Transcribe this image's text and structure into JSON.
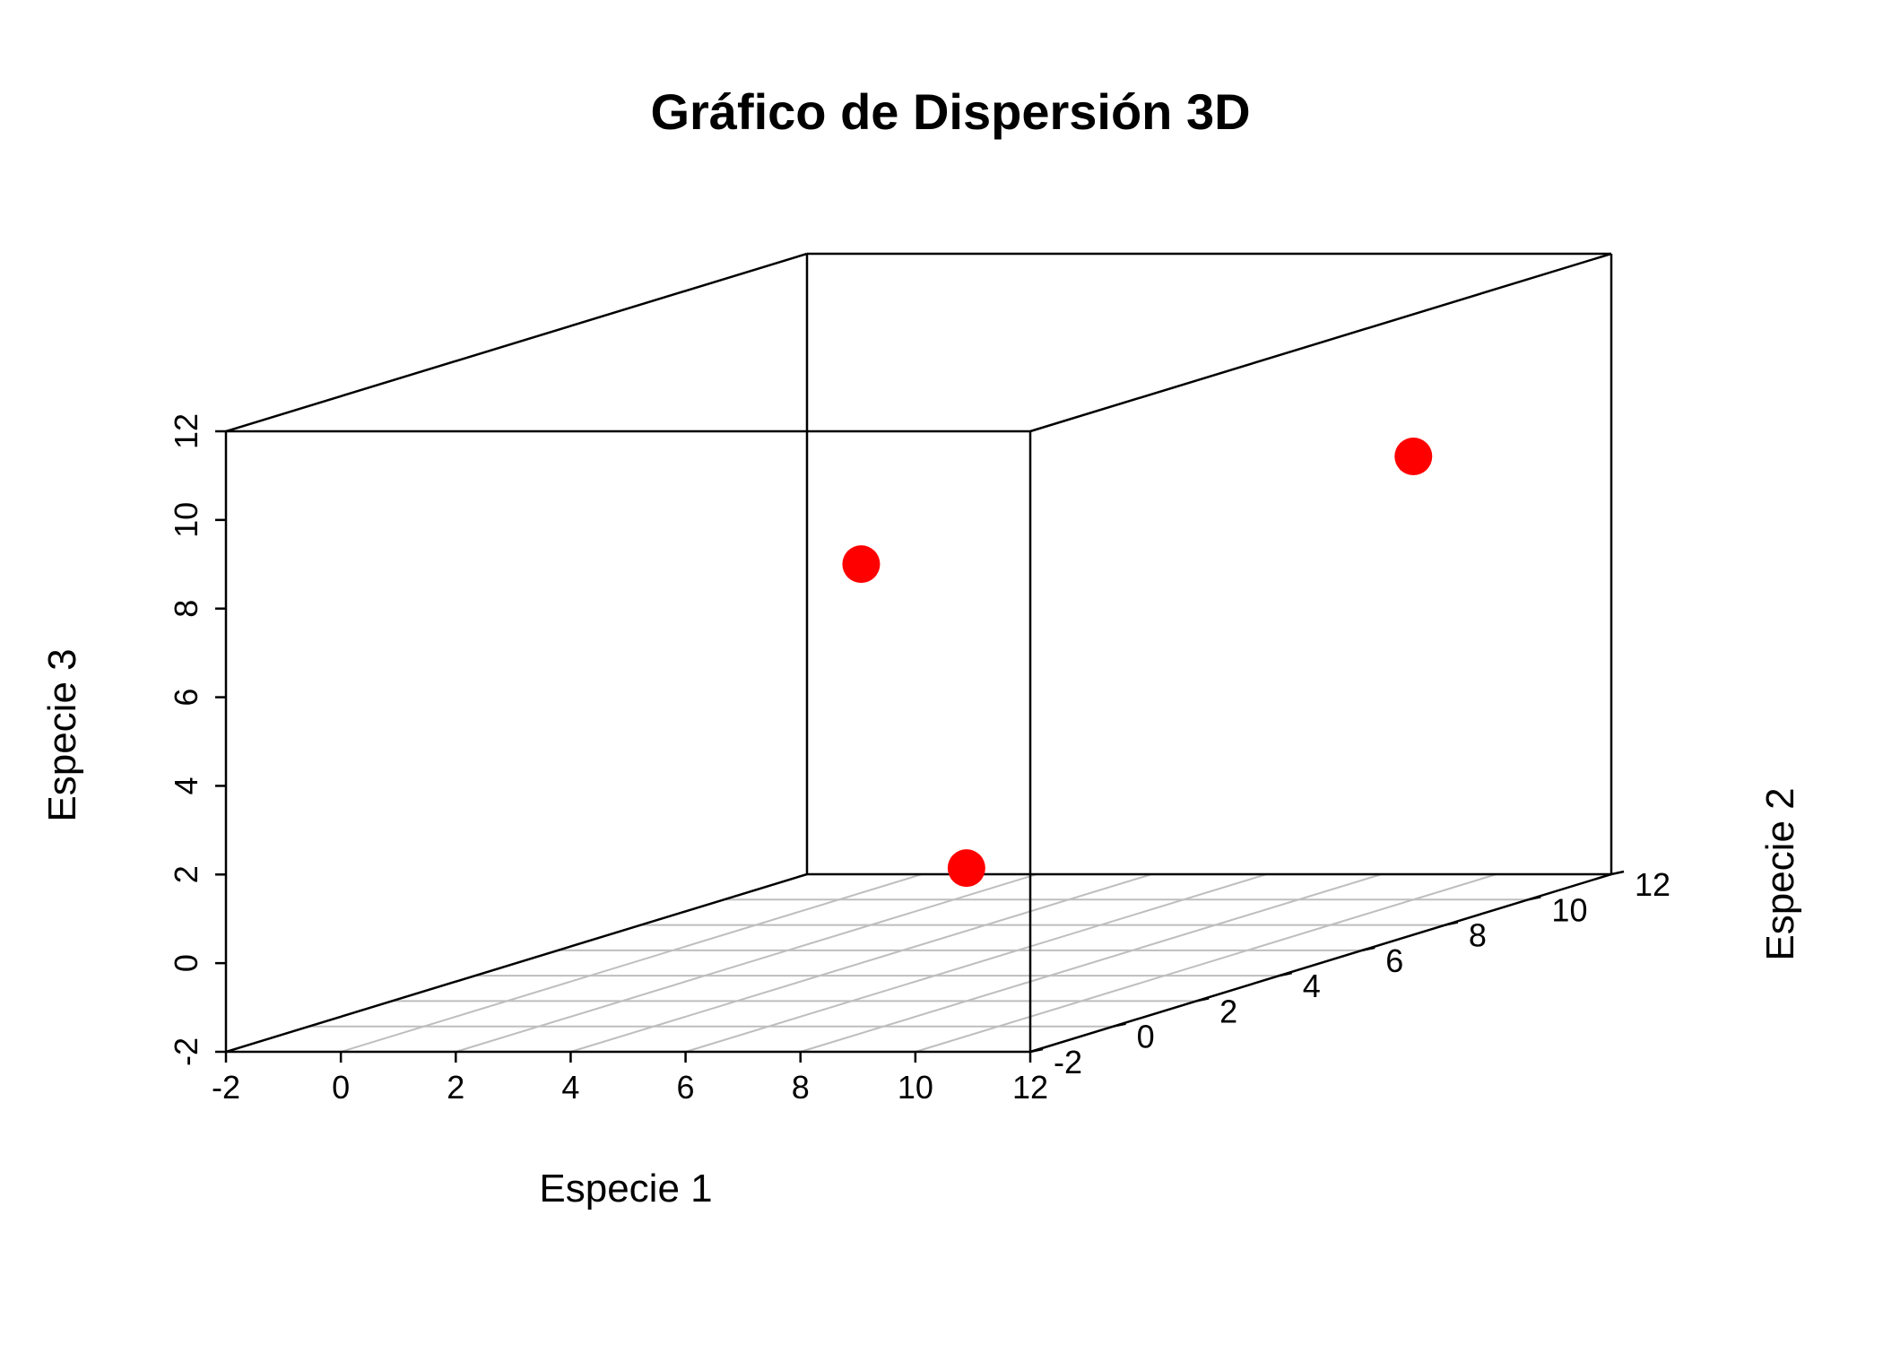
{
  "chart_data": {
    "type": "scatter",
    "title": "Gráfico de Dispersión 3D",
    "xlabel": "Especie 1",
    "ylabel": "Especie 2",
    "zlabel": "Especie 3",
    "xlim": [
      -2,
      12
    ],
    "ylim": [
      -2,
      12
    ],
    "zlim": [
      -2,
      12
    ],
    "x_ticks": [
      "-2",
      "0",
      "2",
      "4",
      "6",
      "8",
      "10",
      "12"
    ],
    "y_ticks": [
      "-2",
      "0",
      "2",
      "4",
      "6",
      "8",
      "10",
      "12"
    ],
    "z_ticks": [
      "-2",
      "0",
      "2",
      "4",
      "6",
      "8",
      "10",
      "12"
    ],
    "grid": true,
    "box": true,
    "point_color": "#ff0000",
    "grid_color": "#bebebe",
    "series": [
      {
        "x": [
          4,
          8,
          10
        ],
        "y": [
          5,
          2,
          10
        ],
        "z": [
          7,
          1,
          8
        ]
      }
    ]
  }
}
